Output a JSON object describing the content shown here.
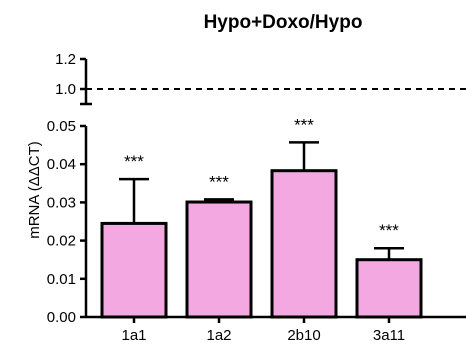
{
  "chart_data": {
    "type": "bar",
    "title": "Hypo+Doxo/Hypo",
    "ylabel": "mRNA (ΔΔCT)",
    "xlabel": "",
    "categories": [
      "1a1",
      "1a2",
      "2b10",
      "3a11"
    ],
    "values": [
      0.0245,
      0.0301,
      0.0383,
      0.015
    ],
    "error_upper": [
      0.0361,
      0.0308,
      0.0457,
      0.018
    ],
    "significance": [
      "***",
      "***",
      "***",
      "***"
    ],
    "bar_color": "#f3a8e1",
    "edge_color": "#000000",
    "reference_line": {
      "value": 1.0,
      "style": "dashed"
    },
    "y_axis_break": true,
    "ylim_lower": [
      0,
      0.05
    ],
    "ylim_upper": [
      0.9,
      1.2
    ],
    "yticks_lower": [
      "0.00",
      "0.01",
      "0.02",
      "0.03",
      "0.04",
      "0.05"
    ],
    "yticks_upper": [
      "1.0",
      "1.2"
    ],
    "grid": false,
    "legend": "none"
  }
}
